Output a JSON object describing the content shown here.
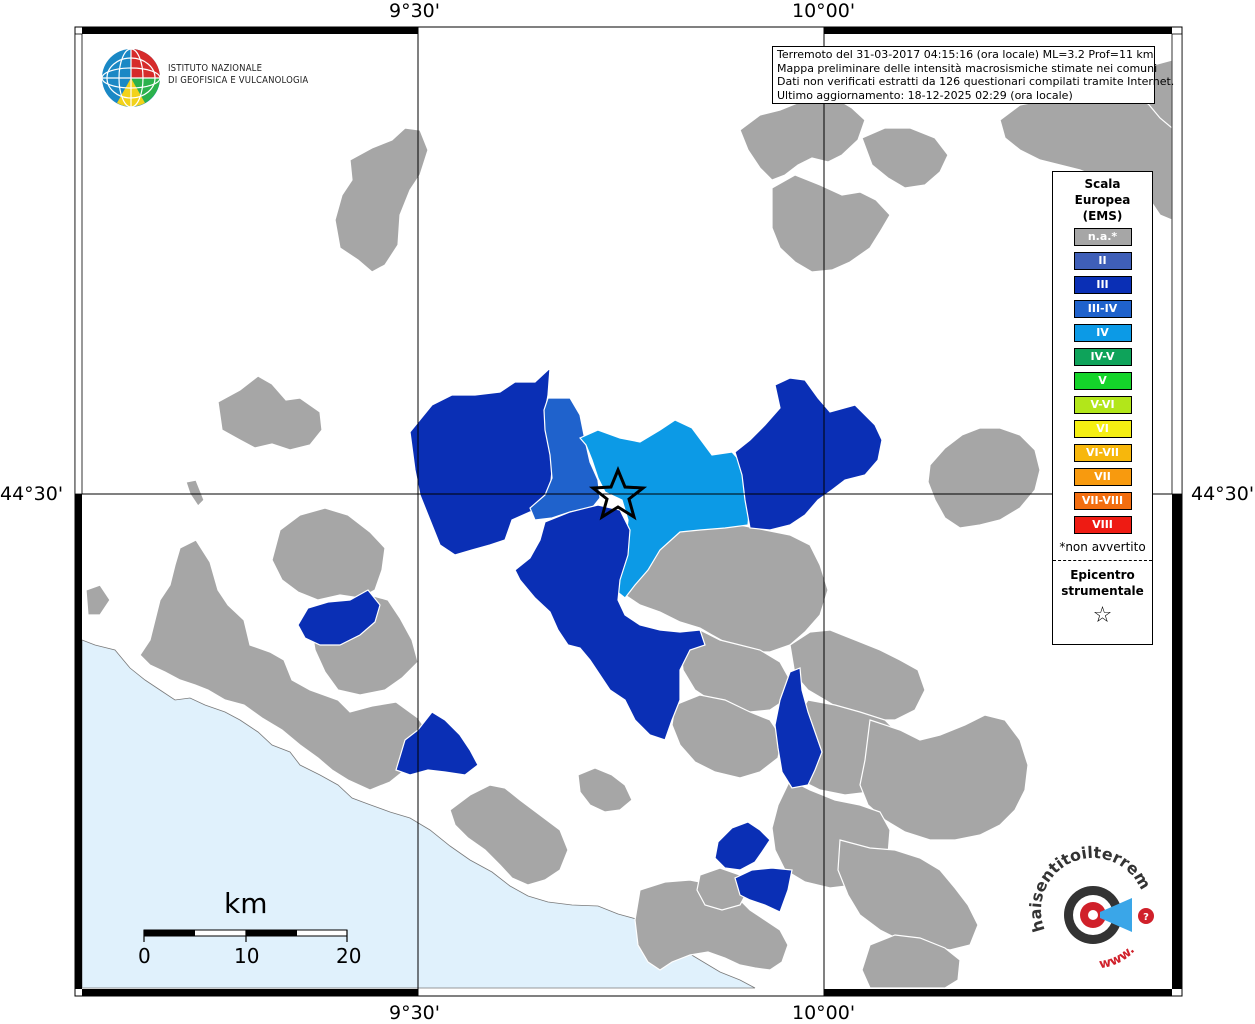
{
  "map": {
    "coords": {
      "lon_left": "9°30'",
      "lon_right": "10°00'",
      "lat": "44°30'"
    },
    "colors": {
      "sea": "#e0f1fc",
      "na": "#a6a6a6",
      "III": "#0a2fb5",
      "III-IV": "#1f62cc",
      "IV": "#0c9ae6",
      "land": "#ffffff"
    }
  },
  "info": {
    "line1": "Terremoto del 31-03-2017 04:15:16 (ora locale) ML=3.2 Prof=11 km",
    "line2": "Mappa preliminare delle intensità macrosismiche stimate nei comuni",
    "line3": "Dati non verificati estratti da 126 questionari compilati tramite Internet.",
    "line4": "Ultimo aggiornamento: 18-12-2025 02:29 (ora locale)"
  },
  "logo": {
    "line1": "ISTITUTO NAZIONALE",
    "line2": "DI GEOFISICA E VULCANOLOGIA",
    "brand_text": "haisentitoilterremoto.it",
    "brand_www": "www.",
    "brand_colors": {
      "dark": "#333333",
      "red": "#d0202a",
      "blue": "#3aa6e8"
    }
  },
  "legend": {
    "title_line1": "Scala",
    "title_line2": "Europea",
    "title_line3": "(EMS)",
    "items": [
      {
        "label": "n.a.*",
        "color": "#a6a6a6"
      },
      {
        "label": "II",
        "color": "#3f5fb8"
      },
      {
        "label": "III",
        "color": "#0a2fb5"
      },
      {
        "label": "III-IV",
        "color": "#1f62cc"
      },
      {
        "label": "IV",
        "color": "#0c9ae6"
      },
      {
        "label": "IV-V",
        "color": "#0ea35a"
      },
      {
        "label": "V",
        "color": "#14d42a"
      },
      {
        "label": "V-VI",
        "color": "#b2e61a"
      },
      {
        "label": "VI",
        "color": "#f5ef12"
      },
      {
        "label": "VI-VII",
        "color": "#f7b70c"
      },
      {
        "label": "VII",
        "color": "#f89a0e"
      },
      {
        "label": "VII-VIII",
        "color": "#f36e10"
      },
      {
        "label": "VIII",
        "color": "#ee1b13"
      }
    ],
    "note": "*non avvertito",
    "epicenter_line1": "Epicentro",
    "epicenter_line2": "strumentale",
    "star": "☆"
  },
  "scale_bar": {
    "unit": "km",
    "ticks": [
      "0",
      "10",
      "20"
    ]
  }
}
